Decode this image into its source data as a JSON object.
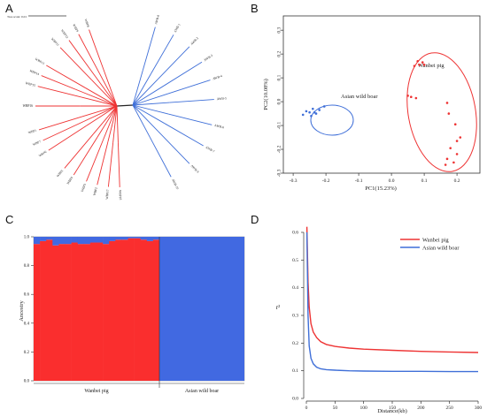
{
  "panels": {
    "a": "A",
    "b": "B",
    "c": "C",
    "d": "D"
  },
  "colors": {
    "red": "#ee3333",
    "blue": "#3f6fd8",
    "stack_red": "#fa2e2e",
    "stack_blue": "#4169e1"
  },
  "chart_data": [
    {
      "type": "tree",
      "scale_label": "Tree scale: 0.01",
      "groups": [
        {
          "color": "red",
          "taxa": [
            "WBP8",
            "WBP9",
            "WBP12",
            "WBP11",
            "WBP13",
            "WBP14",
            "WBP15",
            "WBP16",
            "WBP1",
            "WBP7",
            "WBP6",
            "WBP5",
            "WBP4",
            "WBP3",
            "WBP2",
            "WBP17",
            "WBP18"
          ]
        },
        {
          "color": "blue",
          "taxa": [
            "AWB-8",
            "AWB-1",
            "AWB-2",
            "AWB-3",
            "AWB-4",
            "AWB-5",
            "AWB-6",
            "AWB-7",
            "AWB-9",
            "AWB-10"
          ]
        }
      ]
    },
    {
      "type": "scatter",
      "xlabel": "PC1(15.23%)",
      "ylabel": "PC2(10.08%)",
      "xlim": [
        -0.33,
        0.27
      ],
      "ylim": [
        -0.3,
        0.36
      ],
      "xticks": [
        "-0.3",
        "-0.2",
        "-0.1",
        "0.0",
        "0.1",
        "0.2"
      ],
      "yticks": [
        "-0.3",
        "-0.2",
        "-0.1",
        "0.0",
        "0.1",
        "0.2",
        "0.3"
      ],
      "series": [
        {
          "name": "Wanbei pig",
          "color": "red",
          "points": [
            [
              0.08,
              0.17
            ],
            [
              0.095,
              0.165
            ],
            [
              0.085,
              0.155
            ],
            [
              0.07,
              0.15
            ],
            [
              0.1,
              0.155
            ],
            [
              0.06,
              0.02
            ],
            [
              0.075,
              0.015
            ],
            [
              0.05,
              0.025
            ],
            [
              0.17,
              -0.005
            ],
            [
              0.175,
              -0.05
            ],
            [
              0.195,
              -0.095
            ],
            [
              0.21,
              -0.15
            ],
            [
              0.2,
              -0.165
            ],
            [
              0.18,
              -0.195
            ],
            [
              0.17,
              -0.24
            ],
            [
              0.19,
              -0.255
            ],
            [
              0.2,
              -0.22
            ],
            [
              0.165,
              -0.265
            ]
          ]
        },
        {
          "name": "Asian wild boar",
          "color": "blue",
          "points": [
            [
              -0.27,
              -0.055
            ],
            [
              -0.25,
              -0.045
            ],
            [
              -0.24,
              -0.03
            ],
            [
              -0.23,
              -0.05
            ],
            [
              -0.245,
              -0.06
            ],
            [
              -0.22,
              -0.035
            ],
            [
              -0.205,
              -0.02
            ],
            [
              -0.26,
              -0.04
            ],
            [
              -0.235,
              -0.045
            ]
          ]
        }
      ]
    },
    {
      "type": "bar",
      "ylabel": "Ancestry",
      "yticks": [
        "0.0",
        "0.2",
        "0.4",
        "0.6",
        "0.8",
        "1.0"
      ],
      "categories": [
        "Wanbei pig",
        "Asian wild boar"
      ],
      "wanbei_red": [
        0.95,
        0.97,
        0.98,
        0.94,
        0.95,
        0.95,
        0.96,
        0.95,
        0.95,
        0.96,
        0.96,
        0.95,
        0.97,
        0.98,
        0.98,
        0.99,
        0.99,
        0.98,
        0.97,
        0.98
      ],
      "awb_red": 0.0
    },
    {
      "type": "line",
      "xlabel": "Distance(kb)",
      "ylabel": "r²",
      "xlim": [
        0,
        300
      ],
      "ylim": [
        0,
        0.6
      ],
      "xticks": [
        "0",
        "50",
        "100",
        "150",
        "200",
        "250",
        "300"
      ],
      "yticks": [
        "0.0",
        "0.1",
        "0.2",
        "0.3",
        "0.4",
        "0.5",
        "0.6"
      ],
      "series": [
        {
          "name": "Wanbei pig",
          "color": "red",
          "x": [
            1,
            3,
            5,
            8,
            12,
            18,
            25,
            35,
            50,
            75,
            100,
            150,
            200,
            250,
            300
          ],
          "y": [
            0.62,
            0.42,
            0.33,
            0.27,
            0.24,
            0.22,
            0.205,
            0.195,
            0.188,
            0.182,
            0.178,
            0.174,
            0.17,
            0.168,
            0.166
          ]
        },
        {
          "name": "Asian wild boar",
          "color": "blue",
          "x": [
            1,
            3,
            5,
            8,
            12,
            18,
            25,
            35,
            50,
            75,
            100,
            150,
            200,
            250,
            300
          ],
          "y": [
            0.6,
            0.3,
            0.19,
            0.145,
            0.125,
            0.113,
            0.107,
            0.104,
            0.102,
            0.1,
            0.099,
            0.098,
            0.098,
            0.097,
            0.097
          ]
        }
      ]
    }
  ]
}
